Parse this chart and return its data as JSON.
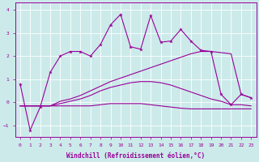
{
  "xlabel": "Windchill (Refroidissement éolien,°C)",
  "bg_color": "#cceaea",
  "line_color": "#990099",
  "x_values": [
    0,
    1,
    2,
    3,
    4,
    5,
    6,
    7,
    8,
    9,
    10,
    11,
    12,
    13,
    14,
    15,
    16,
    17,
    18,
    19,
    20,
    21,
    22,
    23
  ],
  "line1": [
    0.8,
    -1.2,
    -0.2,
    1.3,
    2.0,
    2.2,
    2.2,
    2.0,
    2.5,
    3.35,
    3.8,
    2.4,
    2.3,
    3.75,
    2.6,
    2.65,
    3.15,
    2.65,
    2.25,
    2.2,
    0.35,
    -0.1,
    0.35,
    0.2
  ],
  "line2": [
    -0.15,
    -0.15,
    -0.15,
    -0.15,
    0.05,
    0.15,
    0.3,
    0.5,
    0.7,
    0.9,
    1.05,
    1.2,
    1.35,
    1.5,
    1.65,
    1.8,
    1.95,
    2.1,
    2.2,
    2.2,
    2.15,
    2.1,
    0.35,
    0.2
  ],
  "line3": [
    -0.15,
    -0.15,
    -0.15,
    -0.15,
    -0.05,
    0.05,
    0.15,
    0.3,
    0.5,
    0.65,
    0.75,
    0.85,
    0.9,
    0.9,
    0.85,
    0.75,
    0.6,
    0.45,
    0.3,
    0.15,
    0.05,
    -0.1,
    -0.1,
    -0.15
  ],
  "line4": [
    -0.15,
    -0.15,
    -0.15,
    -0.15,
    -0.15,
    -0.15,
    -0.15,
    -0.15,
    -0.1,
    -0.05,
    -0.05,
    -0.05,
    -0.05,
    -0.1,
    -0.15,
    -0.2,
    -0.25,
    -0.28,
    -0.28,
    -0.28,
    -0.28,
    -0.28,
    -0.28,
    -0.28
  ],
  "ylim": [
    -1.5,
    4.3
  ],
  "xlim": [
    -0.5,
    23.5
  ],
  "yticks": [
    -1,
    0,
    1,
    2,
    3,
    4
  ],
  "xticks": [
    0,
    1,
    2,
    3,
    4,
    5,
    6,
    7,
    8,
    9,
    10,
    11,
    12,
    13,
    14,
    15,
    16,
    17,
    18,
    19,
    20,
    21,
    22,
    23
  ],
  "grid_color": "#aadddd",
  "figsize": [
    3.2,
    2.0
  ],
  "dpi": 100
}
